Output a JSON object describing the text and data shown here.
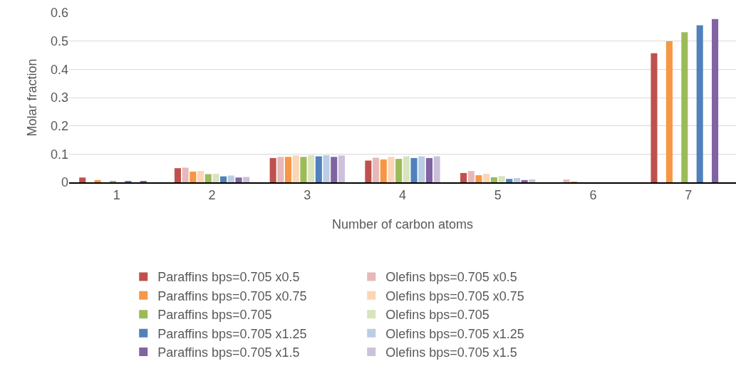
{
  "chart_data": {
    "type": "bar",
    "xlabel": "Number of carbon atoms",
    "ylabel": "Molar fraction",
    "categories": [
      "1",
      "2",
      "3",
      "4",
      "5",
      "6",
      "7"
    ],
    "ylim": [
      0,
      0.6
    ],
    "yticks": [
      0,
      0.1,
      0.2,
      0.3,
      0.4,
      0.5,
      0.6
    ],
    "grid": "y",
    "legend": "bottom",
    "series": [
      {
        "name": "Paraffins bps=0.705 x0.5",
        "color": "#c0504d",
        "values": [
          0.017,
          0.05,
          0.086,
          0.077,
          0.033,
          0,
          0.457
        ]
      },
      {
        "name": "Olefins bps=0.705 x0.5",
        "color": "#e6b9b8",
        "values": [
          0,
          0.052,
          0.09,
          0.087,
          0.04,
          0.01,
          0
        ]
      },
      {
        "name": "Paraffins bps=0.705 x0.75",
        "color": "#f79646",
        "values": [
          0.008,
          0.038,
          0.09,
          0.081,
          0.025,
          0.002,
          0.499
        ]
      },
      {
        "name": "Olefins bps=0.705 x0.75",
        "color": "#fcd5b5",
        "values": [
          0,
          0.04,
          0.095,
          0.09,
          0.03,
          0,
          0
        ]
      },
      {
        "name": "Paraffins bps=0.705",
        "color": "#9bbb59",
        "values": [
          0.005,
          0.029,
          0.09,
          0.083,
          0.018,
          0,
          0.531
        ]
      },
      {
        "name": "Olefins bps=0.705",
        "color": "#d7e4bd",
        "values": [
          0,
          0.03,
          0.096,
          0.092,
          0.022,
          0,
          0
        ]
      },
      {
        "name": "Paraffins bps=0.705 x1.25",
        "color": "#4f81bd",
        "values": [
          0.003,
          0.021,
          0.092,
          0.086,
          0.012,
          0,
          0.556
        ]
      },
      {
        "name": "Olefins bps=0.705 x1.25",
        "color": "#b9cde5",
        "values": [
          0,
          0.024,
          0.096,
          0.092,
          0.015,
          0,
          0
        ]
      },
      {
        "name": "Paraffins bps=0.705 x1.5",
        "color": "#8064a2",
        "values": [
          0.003,
          0.017,
          0.09,
          0.086,
          0.008,
          0,
          0.578
        ]
      },
      {
        "name": "Olefins bps=0.705 x1.5",
        "color": "#ccc1da",
        "values": [
          0,
          0.019,
          0.095,
          0.092,
          0.01,
          0,
          0
        ]
      }
    ]
  }
}
